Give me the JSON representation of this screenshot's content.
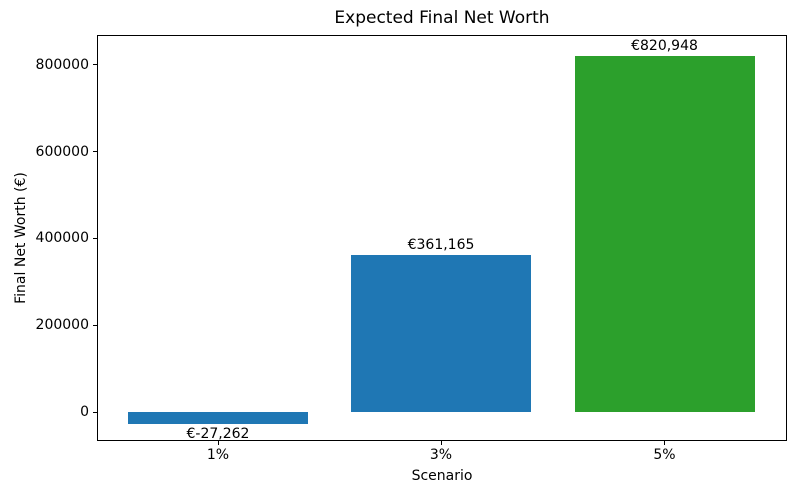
{
  "chart_data": {
    "type": "bar",
    "title": "Expected Final Net Worth",
    "xlabel": "Scenario",
    "ylabel": "Final Net Worth (€)",
    "categories": [
      "1%",
      "3%",
      "5%"
    ],
    "values": [
      -27262,
      361165,
      820948
    ],
    "bar_labels": [
      "€-27,262",
      "€361,165",
      "€820,948"
    ],
    "bar_colors": [
      "#1f77b4",
      "#1f77b4",
      "#2ca02c"
    ],
    "yticks": [
      0,
      200000,
      400000,
      600000,
      800000
    ],
    "ytick_labels": [
      "0",
      "200000",
      "400000",
      "600000",
      "800000"
    ],
    "ylim": [
      -66800,
      868400
    ],
    "grid": false,
    "legend": "none",
    "background_color": "#ffffff",
    "spine_color": "#000000"
  }
}
